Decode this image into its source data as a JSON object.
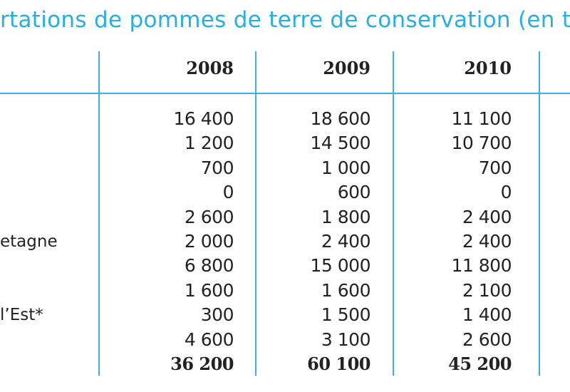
{
  "title": "rtations de pommes de terre de conservation (en ton",
  "columns": [
    "2008",
    "2009",
    "2010"
  ],
  "rows": [
    {
      "label": "",
      "values": [
        "16 400",
        "18 600",
        "11 100"
      ]
    },
    {
      "label": "",
      "values": [
        "1 200",
        "14 500",
        "10 700"
      ]
    },
    {
      "label": "",
      "values": [
        "700",
        "1 000",
        "700"
      ]
    },
    {
      "label": "",
      "values": [
        "0",
        "600",
        "0"
      ]
    },
    {
      "label": "",
      "values": [
        "2 600",
        "1 800",
        "2 400"
      ]
    },
    {
      "label": "etagne",
      "values": [
        "2 000",
        "2 400",
        "2 400"
      ]
    },
    {
      "label": "",
      "values": [
        "6 800",
        "15 000",
        "11 800"
      ]
    },
    {
      "label": "",
      "values": [
        "1 600",
        "1 600",
        "2 100"
      ]
    },
    {
      "label": "l’Est*",
      "values": [
        "300",
        "1 500",
        "1 400"
      ]
    },
    {
      "label": "",
      "values": [
        "4 600",
        "3 100",
        "2 600"
      ]
    },
    {
      "label": "",
      "values": [
        "36 200",
        "60 100",
        "45 200"
      ],
      "total": true
    }
  ]
}
